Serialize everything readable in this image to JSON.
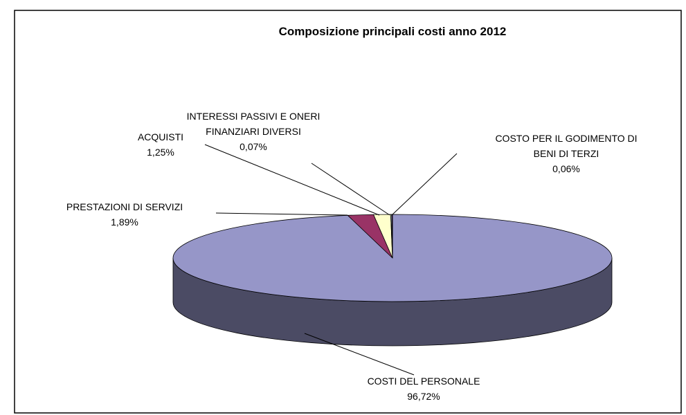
{
  "chart_data": {
    "type": "pie3d",
    "title": "Composizione principali costi anno 2012",
    "categories": [
      "COSTI DEL PERSONALE",
      "PRESTAZIONI DI SERVIZI",
      "ACQUISTI",
      "INTERESSI PASSIVI E ONERI FINANZIARI DIVERSI",
      "COSTO PER IL GODIMENTO DI BENI DI TERZI"
    ],
    "values": [
      96.72,
      1.89,
      1.25,
      0.07,
      0.06
    ],
    "value_labels": [
      "96,72%",
      "1,89%",
      "1,25%",
      "0,07%",
      "0,06%"
    ],
    "colors": [
      "#9696c8",
      "#993366",
      "#ffffcc",
      "#ccffff",
      "#660066"
    ]
  }
}
